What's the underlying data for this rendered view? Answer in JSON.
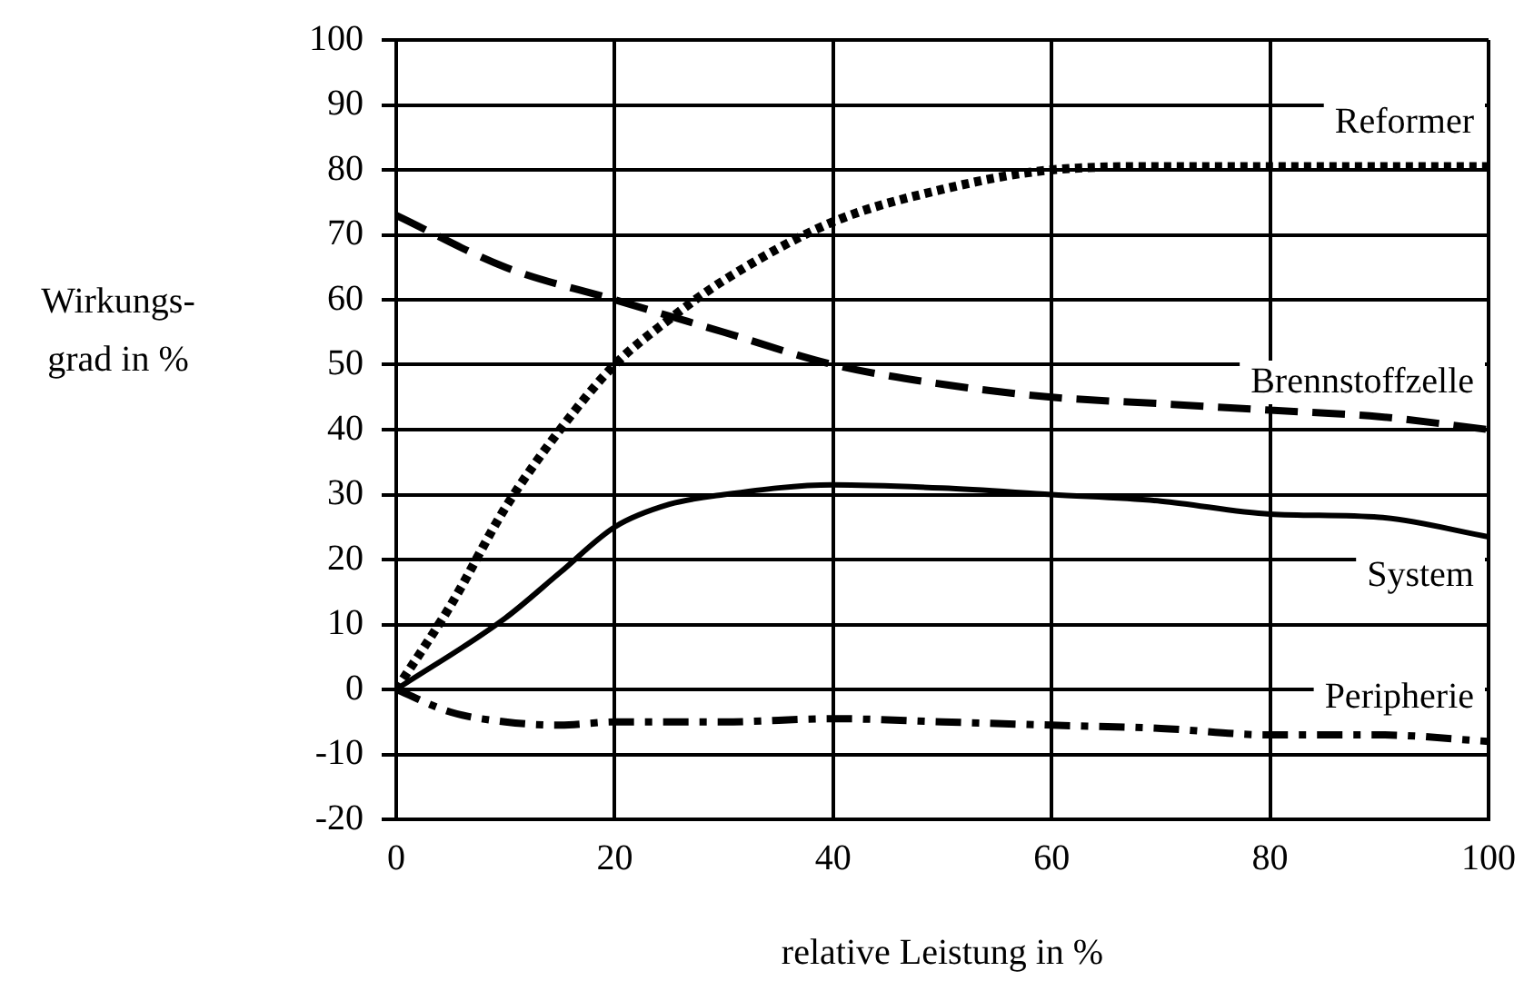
{
  "chart_data": {
    "type": "line",
    "xlabel": "relative Leistung in %",
    "ylabel": "Wirkungs-\ngrad in %",
    "xlim": [
      0,
      100
    ],
    "xticks": [
      0,
      20,
      40,
      60,
      80,
      100
    ],
    "ylim": [
      -20,
      100
    ],
    "yticks": [
      -20,
      -10,
      0,
      10,
      20,
      30,
      40,
      50,
      60,
      70,
      80,
      90,
      100
    ],
    "grid": true,
    "legend": false,
    "marker": "none",
    "series": [
      {
        "name": "Reformer",
        "color": "#000000",
        "line_style": "dotted",
        "x": [
          0,
          5,
          10,
          15,
          20,
          25,
          30,
          40,
          50,
          60,
          70,
          80,
          90,
          100
        ],
        "values": [
          0,
          13,
          28,
          40,
          50,
          57,
          63,
          72,
          77,
          80,
          80.5,
          80.5,
          80.5,
          80.5
        ]
      },
      {
        "name": "Brennstoffzelle",
        "color": "#000000",
        "line_style": "dashed",
        "x": [
          0,
          10,
          20,
          30,
          40,
          50,
          60,
          70,
          80,
          90,
          100
        ],
        "values": [
          73,
          65,
          60,
          55,
          50,
          47,
          45,
          44,
          43,
          42,
          40
        ]
      },
      {
        "name": "System",
        "color": "#000000",
        "line_style": "solid",
        "x": [
          0,
          10,
          15,
          20,
          25,
          30,
          40,
          50,
          60,
          70,
          80,
          90,
          100
        ],
        "values": [
          0,
          11,
          18,
          25,
          28.5,
          30,
          31.5,
          31,
          30,
          29,
          27,
          26.5,
          23.5
        ]
      },
      {
        "name": "Peripherie",
        "color": "#000000",
        "line_style": "dashdot",
        "x": [
          0,
          5,
          10,
          15,
          20,
          30,
          40,
          50,
          60,
          70,
          80,
          90,
          100
        ],
        "values": [
          0,
          -3.5,
          -5,
          -5.5,
          -5,
          -5,
          -4.5,
          -5,
          -5.5,
          -6,
          -7,
          -7,
          -8
        ]
      }
    ]
  }
}
